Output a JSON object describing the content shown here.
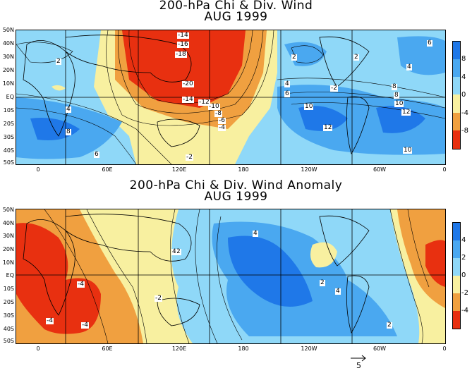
{
  "panels": [
    {
      "title": "200-hPa Chi & Div. Wind",
      "subtitle": "AUG 1999",
      "colorbar_ticks": [
        "8",
        "4",
        "0",
        "-4",
        "-8"
      ],
      "colorbar_colors": [
        "#1f78e8",
        "#4aa8f0",
        "#8fd8f8",
        "#f8f0a0",
        "#f0a040",
        "#e83010"
      ],
      "contour_labels": [
        "-14",
        "-16",
        "-18",
        "-20",
        "-14",
        "-12",
        "-10",
        "-8",
        "-6",
        "-4",
        "-2",
        "2",
        "4",
        "6",
        "8",
        "10",
        "12",
        "-2",
        "2",
        "4",
        "6",
        "8",
        "10",
        "12",
        "10",
        "8",
        "6",
        "4",
        "2"
      ]
    },
    {
      "title": "200-hPa Chi & Div. Wind Anomaly",
      "subtitle": "AUG 1999",
      "colorbar_ticks": [
        "4",
        "2",
        "0",
        "-2",
        "-4"
      ],
      "colorbar_colors": [
        "#1f78e8",
        "#4aa8f0",
        "#8fd8f8",
        "#f8f0a0",
        "#f0a040",
        "#e83010"
      ],
      "contour_labels": [
        "-4",
        "-4",
        "-4",
        "-2",
        "2",
        "4",
        "4",
        "2",
        "4",
        "2"
      ]
    }
  ],
  "lat_labels": [
    "50N",
    "40N",
    "30N",
    "20N",
    "10N",
    "EQ",
    "10S",
    "20S",
    "30S",
    "40S",
    "50S"
  ],
  "lon_labels": [
    "0",
    "60E",
    "120E",
    "180",
    "120W",
    "60W",
    "0"
  ],
  "vector_scale_label": "5"
}
